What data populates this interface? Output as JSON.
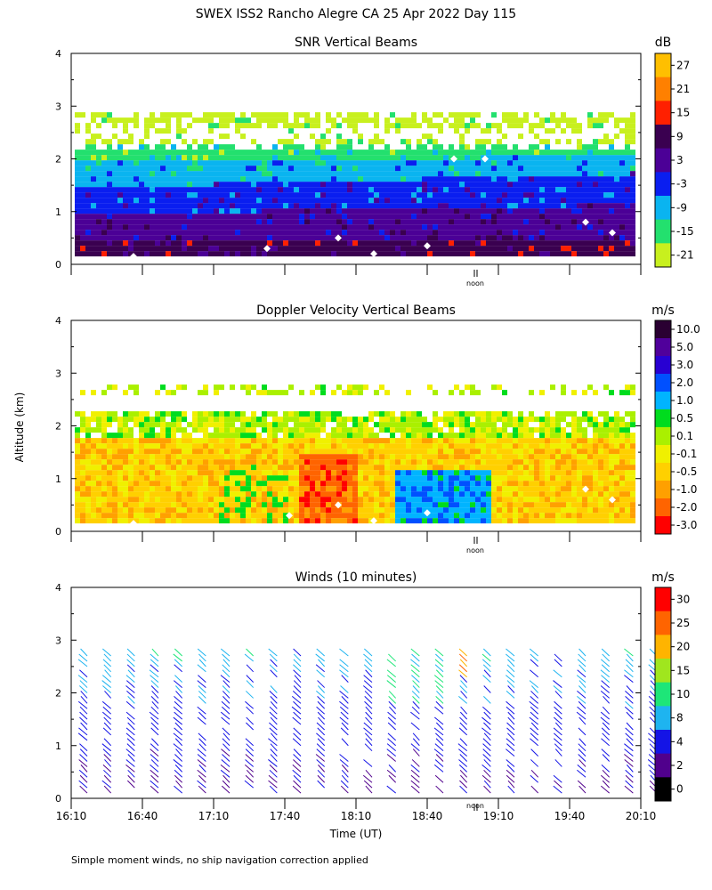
{
  "title": "SWEX ISS2 Rancho Alegre CA  25 Apr 2022 Day 115",
  "footnote": "Simple moment winds, no ship navigation correction applied",
  "y_axis_label": "Altitude (km)",
  "x_axis_label": "Time (UT)",
  "noon_label": "noon",
  "chart_data": [
    {
      "type": "heatmap",
      "title": "SNR Vertical Beams",
      "ylabel": "Altitude (km)",
      "ylim": [
        0,
        4
      ],
      "y_ticks": [
        "0",
        "1",
        "2",
        "3",
        "4"
      ],
      "time_range_ut": [
        "16:10",
        "20:10"
      ],
      "grid": false,
      "colorbar": {
        "unit": "dB",
        "labels": [
          "27",
          "21",
          "15",
          "9",
          "3",
          "-3",
          "-9",
          "-15",
          "-21"
        ],
        "colors": [
          "#ffbf00",
          "#ff8000",
          "#ff2000",
          "#3a0050",
          "#4b0096",
          "#0a1ef0",
          "#0ab4f0",
          "#23e06e",
          "#c8f01e"
        ]
      },
      "layers": [
        {
          "from_km": 0.15,
          "to_km": 0.45,
          "value_db": 9
        },
        {
          "from_km": 0.45,
          "to_km": 1.0,
          "value_db": 3
        },
        {
          "from_km": 1.0,
          "to_km": 1.6,
          "value_db": -3
        },
        {
          "from_km": 1.6,
          "to_km": 2.0,
          "value_db": -9
        },
        {
          "from_km": 2.0,
          "to_km": 2.3,
          "value_db": -15
        },
        {
          "from_km": 2.3,
          "to_km": 2.8,
          "value_db": -21
        }
      ]
    },
    {
      "type": "heatmap",
      "title": "Doppler Velocity Vertical Beams",
      "ylabel": "Altitude (km)",
      "ylim": [
        0,
        4
      ],
      "y_ticks": [
        "0",
        "1",
        "2",
        "3",
        "4"
      ],
      "time_range_ut": [
        "16:10",
        "20:10"
      ],
      "grid": false,
      "colorbar": {
        "unit": "m/s",
        "labels": [
          "10.0",
          "5.0",
          "3.0",
          "2.0",
          "1.0",
          "0.5",
          "0.1",
          "-0.1",
          "-0.5",
          "-1.0",
          "-2.0",
          "-3.0"
        ],
        "colors": [
          "#2a0032",
          "#50009b",
          "#2800d2",
          "#0050ff",
          "#00b4ff",
          "#00dc1e",
          "#aaf000",
          "#f0f000",
          "#ffd000",
          "#ffa000",
          "#ff6400",
          "#ff0000"
        ]
      },
      "layers": [
        {
          "from_km": 0.15,
          "to_km": 1.7,
          "value_ms": -0.5
        },
        {
          "from_km": 1.7,
          "to_km": 2.2,
          "value_ms": 0.1
        },
        {
          "from_km": 2.3,
          "to_km": 2.7,
          "value_ms": 0.1
        }
      ],
      "features": [
        {
          "label": "downdraft",
          "from_ut": "17:50",
          "to_ut": "18:05",
          "value_ms": -2.0
        },
        {
          "label": "updraft",
          "from_ut": "18:25",
          "to_ut": "19:00",
          "value_ms": 1.0
        }
      ]
    },
    {
      "type": "scatter",
      "title": "Winds (10 minutes)",
      "ylabel": "Altitude (km)",
      "xlabel": "Time (UT)",
      "ylim": [
        0,
        4
      ],
      "y_ticks": [
        "0",
        "1",
        "2",
        "3",
        "4"
      ],
      "x_ticks": [
        "16:10",
        "16:40",
        "17:10",
        "17:40",
        "18:10",
        "18:40",
        "19:10",
        "19:40",
        "20:10"
      ],
      "interval_minutes": 10,
      "profiles": 25,
      "max_altitude_km": 2.8,
      "grid": false,
      "colorbar": {
        "unit": "m/s",
        "labels": [
          "30",
          "25",
          "20",
          "15",
          "10",
          "8",
          "4",
          "2",
          "0"
        ],
        "colors": [
          "#ff0000",
          "#ff6400",
          "#ffb400",
          "#a0e61e",
          "#1ee678",
          "#1eb4f0",
          "#1414e6",
          "#50008c",
          "#000000"
        ]
      }
    }
  ]
}
